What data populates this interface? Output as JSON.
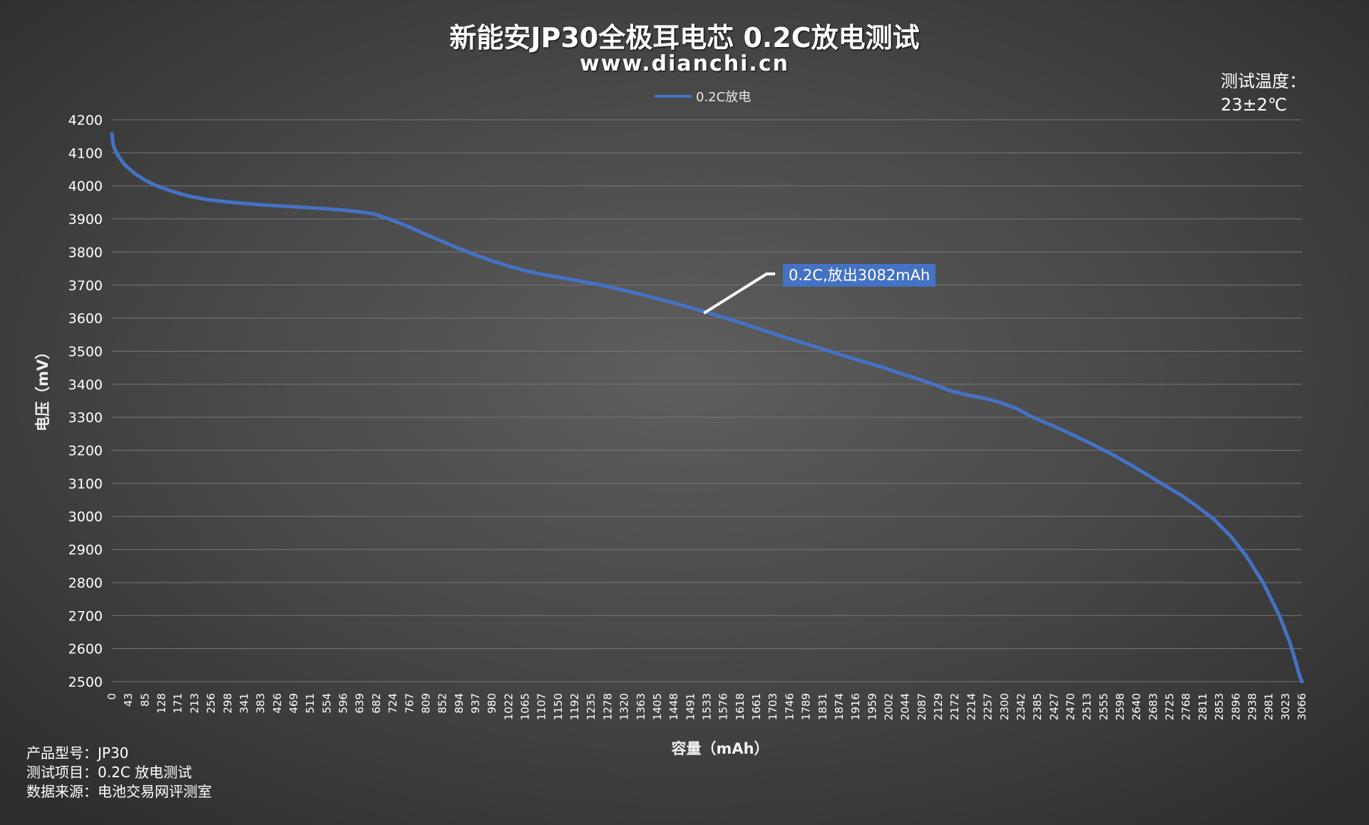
{
  "chart_data": {
    "type": "line",
    "title": "新能安JP30全极耳电芯 0.2C放电测试",
    "subtitle": "www.dianchi.cn",
    "xlabel": "容量（mAh）",
    "ylabel": "电压（mV）",
    "ylim": [
      2500,
      4200
    ],
    "xlim": [
      0,
      3082
    ],
    "grid": true,
    "legend_position": "top-center",
    "y_ticks": [
      "4200",
      "4100",
      "4000",
      "3900",
      "3800",
      "3700",
      "3600",
      "3500",
      "3400",
      "3300",
      "3200",
      "3100",
      "3000",
      "2900",
      "2800",
      "2700",
      "2600",
      "2500"
    ],
    "x_ticks": [
      "0",
      "43",
      "85",
      "128",
      "171",
      "213",
      "256",
      "298",
      "341",
      "383",
      "426",
      "469",
      "511",
      "554",
      "596",
      "639",
      "682",
      "724",
      "767",
      "809",
      "852",
      "894",
      "937",
      "980",
      "1022",
      "1065",
      "1107",
      "1150",
      "1192",
      "1235",
      "1278",
      "1320",
      "1363",
      "1405",
      "1448",
      "1491",
      "1533",
      "1576",
      "1618",
      "1661",
      "1703",
      "1746",
      "1789",
      "1831",
      "1874",
      "1916",
      "1959",
      "2002",
      "2044",
      "2087",
      "2129",
      "2172",
      "2214",
      "2257",
      "2300",
      "2342",
      "2385",
      "2427",
      "2470",
      "2513",
      "2555",
      "2598",
      "2640",
      "2683",
      "2725",
      "2768",
      "2811",
      "2853",
      "2896",
      "2938",
      "2981",
      "3023",
      "3066"
    ],
    "series": [
      {
        "name": "0.2C放电",
        "color": "#4472c4",
        "x": [
          0,
          3,
          10,
          20,
          30,
          43,
          60,
          85,
          110,
          128,
          150,
          171,
          200,
          213,
          240,
          256,
          298,
          341,
          383,
          426,
          469,
          511,
          554,
          596,
          639,
          660,
          682,
          700,
          724,
          767,
          809,
          852,
          894,
          937,
          980,
          1022,
          1065,
          1107,
          1150,
          1192,
          1235,
          1278,
          1320,
          1363,
          1405,
          1448,
          1491,
          1533,
          1576,
          1618,
          1661,
          1703,
          1746,
          1789,
          1831,
          1874,
          1916,
          1959,
          2002,
          2044,
          2087,
          2129,
          2172,
          2214,
          2257,
          2300,
          2342,
          2385,
          2427,
          2470,
          2513,
          2555,
          2598,
          2640,
          2683,
          2725,
          2768,
          2811,
          2853,
          2896,
          2938,
          2981,
          3023,
          3050,
          3066,
          3075,
          3082
        ],
        "values": [
          4158,
          4125,
          4103,
          4085,
          4068,
          4053,
          4037,
          4018,
          4003,
          3995,
          3986,
          3978,
          3969,
          3966,
          3960,
          3957,
          3952,
          3947,
          3943,
          3940,
          3937,
          3934,
          3931,
          3927,
          3922,
          3919,
          3914,
          3907,
          3897,
          3877,
          3855,
          3834,
          3813,
          3793,
          3775,
          3759,
          3745,
          3734,
          3725,
          3716,
          3707,
          3697,
          3686,
          3674,
          3661,
          3648,
          3634,
          3620,
          3605,
          3590,
          3573,
          3557,
          3541,
          3525,
          3510,
          3494,
          3479,
          3464,
          3449,
          3432,
          3416,
          3399,
          3380,
          3368,
          3358,
          3345,
          3327,
          3300,
          3279,
          3257,
          3233,
          3209,
          3183,
          3155,
          3125,
          3095,
          3065,
          3030,
          2992,
          2942,
          2880,
          2800,
          2702,
          2620,
          2560,
          2520,
          2500
        ]
      }
    ],
    "annotations": [
      {
        "text": "0.2C,放出3082mAh",
        "x": 1533,
        "y": 3615
      }
    ]
  },
  "labels": {
    "title": "新能安JP30全极耳电芯 0.2C放电测试",
    "subtitle": "www.dianchi.cn",
    "legend": "0.2C放电",
    "temp_line1": "测试温度：",
    "temp_line2": "23±2℃",
    "ylabel": "电压（mV）",
    "xlabel": "容量（mAh）",
    "callout": "0.2C,放出3082mAh",
    "info_model": "产品型号：JP30",
    "info_item": "测试项目：0.2C 放电测试",
    "info_source": "数据来源：电池交易网评测室"
  }
}
